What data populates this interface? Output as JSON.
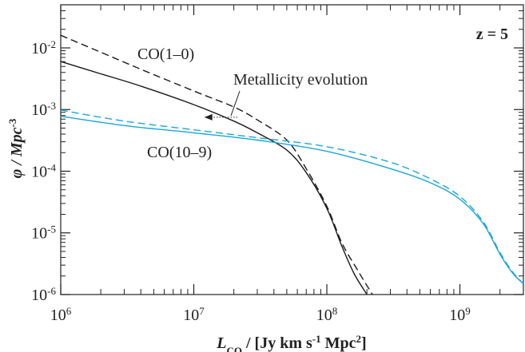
{
  "chart_data": {
    "type": "line",
    "annotation_z": "z = 5",
    "xlabel": {
      "main": "L",
      "sub": "CO",
      "rest1": " / [Jy km s",
      "exp1": "-1",
      "rest2": " Mpc",
      "exp2": "2",
      "rest3": "]"
    },
    "ylabel": {
      "main": "φ / Mpc",
      "exp": "-3"
    },
    "xscale": "log",
    "yscale": "log",
    "xlim": [
      1000000,
      3000000000
    ],
    "ylim": [
      1e-06,
      0.05
    ],
    "x_ticks": [
      {
        "base": "10",
        "exp": "6",
        "value": 1000000
      },
      {
        "base": "10",
        "exp": "7",
        "value": 10000000
      },
      {
        "base": "10",
        "exp": "8",
        "value": 100000000
      },
      {
        "base": "10",
        "exp": "9",
        "value": 1000000000
      }
    ],
    "y_ticks": [
      {
        "base": "10",
        "exp": "-2",
        "value": 0.01
      },
      {
        "base": "10",
        "exp": "-3",
        "value": 0.001
      },
      {
        "base": "10",
        "exp": "-4",
        "value": 0.0001
      },
      {
        "base": "10",
        "exp": "-5",
        "value": 1e-05
      },
      {
        "base": "10",
        "exp": "-6",
        "value": 1e-06
      }
    ],
    "series": [
      {
        "name": "CO(1–0)",
        "color": "#1a1a1a",
        "dash": "solid",
        "points": [
          [
            1000000,
            0.006
          ],
          [
            2000000,
            0.0038
          ],
          [
            4000000,
            0.0024
          ],
          [
            10000000,
            0.0012
          ],
          [
            20000000,
            0.00065
          ],
          [
            30000000,
            0.00042
          ],
          [
            50000000,
            0.00022
          ],
          [
            70000000,
            9.5e-05
          ],
          [
            100000000,
            2.5e-05
          ],
          [
            130000000,
            6e-06
          ],
          [
            160000000,
            2.2e-06
          ],
          [
            200000000,
            1e-06
          ]
        ]
      },
      {
        "name": "",
        "color": "#1a1a1a",
        "dash": "dashed",
        "points": [
          [
            1000000,
            0.016
          ],
          [
            2000000,
            0.0085
          ],
          [
            4000000,
            0.0045
          ],
          [
            10000000,
            0.002
          ],
          [
            20000000,
            0.0011
          ],
          [
            30000000,
            0.00068
          ],
          [
            50000000,
            0.00032
          ],
          [
            70000000,
            0.00011
          ],
          [
            100000000,
            2.7e-05
          ],
          [
            130000000,
            6.8e-06
          ],
          [
            170000000,
            2.5e-06
          ],
          [
            220000000,
            1e-06
          ]
        ]
      },
      {
        "name": "CO(10–9)",
        "color": "#1aa7d8",
        "dash": "solid",
        "points": [
          [
            1000000,
            0.00078
          ],
          [
            3000000,
            0.00055
          ],
          [
            10000000,
            0.00042
          ],
          [
            30000000,
            0.00032
          ],
          [
            100000000,
            0.00021
          ],
          [
            300000000,
            0.00011
          ],
          [
            600000000,
            6.5e-05
          ],
          [
            1000000000,
            3.5e-05
          ],
          [
            1500000000,
            1.4e-05
          ],
          [
            2000000000,
            4.5e-06
          ],
          [
            2500000000,
            2.2e-06
          ],
          [
            3000000000,
            1.5e-06
          ]
        ]
      },
      {
        "name": "",
        "color": "#1aa7d8",
        "dash": "dashed",
        "points": [
          [
            1000000,
            0.00098
          ],
          [
            3000000,
            0.00065
          ],
          [
            10000000,
            0.00047
          ],
          [
            30000000,
            0.00035
          ],
          [
            100000000,
            0.00025
          ],
          [
            300000000,
            0.00014
          ],
          [
            600000000,
            7.5e-05
          ],
          [
            1000000000,
            3.9e-05
          ],
          [
            1500000000,
            1.5e-05
          ],
          [
            2000000000,
            4.8e-06
          ],
          [
            2500000000,
            2.3e-06
          ],
          [
            3000000000,
            1.5e-06
          ]
        ]
      }
    ],
    "annotations": [
      {
        "text": "CO(1–0)",
        "color": "#1a1a1a"
      },
      {
        "text": "CO(10–9)",
        "color": "#1aa7d8"
      },
      {
        "text": "Metallicity evolution",
        "color": "#1a1a1a",
        "arrow_from": [
          18000000,
          0.00075
        ],
        "arrow_to": [
          12000000,
          0.00075
        ]
      }
    ],
    "grid": false,
    "legend": "none"
  }
}
